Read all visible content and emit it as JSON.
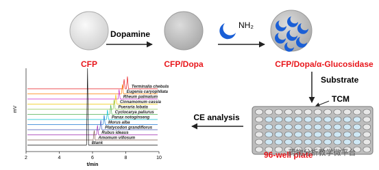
{
  "header": {
    "step1": "Dopamine",
    "enzyme_group": "NH₂",
    "step2_products": [
      "CFP",
      "CFP/Dopa",
      "CFP/Dopa/α-Glucosidase"
    ]
  },
  "plate": {
    "substrate": "Substrate",
    "tcm": "TCM",
    "label": "96-well plate",
    "analysis": "CE analysis"
  },
  "watermark": "药物分析教学微平台",
  "electropherogram": {
    "y_label": "mV",
    "x_label": "t/min",
    "xlim": [
      2,
      10
    ],
    "xticks": [
      2,
      4,
      6,
      8,
      10
    ],
    "traces": [
      {
        "name": "Terminalia chebula",
        "color": "#e8161b",
        "peaks": [
          7.9,
          8.1
        ]
      },
      {
        "name": "Eugenia caryophllata",
        "color": "#ff7f00",
        "peaks": [
          7.8
        ]
      },
      {
        "name": "Rheum palmatum",
        "color": "#c81ec8",
        "peaks": [
          7.6
        ]
      },
      {
        "name": "Cinnamomum cassia",
        "color": "#f0c800",
        "peaks": [
          7.4
        ]
      },
      {
        "name": "Pueraria lobata",
        "color": "#8bc34a",
        "peaks": [
          7.3
        ]
      },
      {
        "name": "Cyclocarya paliurus",
        "color": "#4caf50",
        "peaks": [
          7.1
        ]
      },
      {
        "name": "Panax notoginseng",
        "color": "#00bcd4",
        "peaks": [
          6.9
        ]
      },
      {
        "name": "Morus alba",
        "color": "#1976d2",
        "peaks": [
          6.7
        ]
      },
      {
        "name": "Platycodon grandiflorus",
        "color": "#3f51b5",
        "peaks": [
          6.5
        ]
      },
      {
        "name": "Rubus ideaus",
        "color": "#9c27b0",
        "peaks": [
          6.3
        ]
      },
      {
        "name": "Amomum villosum",
        "color": "#795548",
        "peaks": [
          6.1
        ]
      },
      {
        "name": "Blank",
        "color": "#111111",
        "peaks": [
          5.7
        ]
      }
    ]
  }
}
